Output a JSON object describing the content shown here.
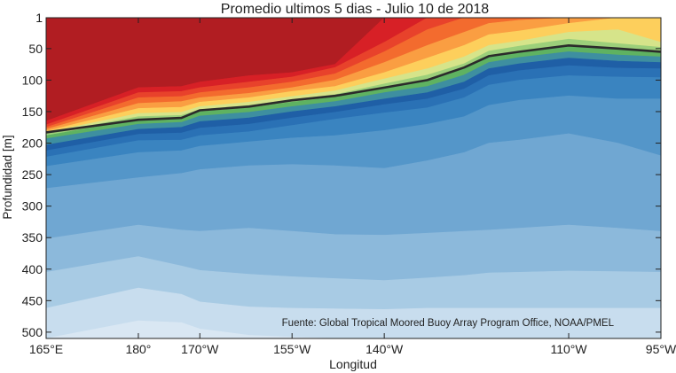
{
  "chart_data": {
    "type": "contour",
    "title": "Promedio ultimos 5 dias - Julio 10 de 2018",
    "xlabel": "Longitud",
    "ylabel": "Profundidad [m]",
    "source_note": "Fuente: Global Tropical Moored Buoy Array Program Office, NOAA/PMEL",
    "x_ticks": [
      {
        "value": 165,
        "label": "165°E"
      },
      {
        "value": 180,
        "label": "180°"
      },
      {
        "value": 190,
        "label": "170°W"
      },
      {
        "value": 205,
        "label": "155°W"
      },
      {
        "value": 220,
        "label": "140°W"
      },
      {
        "value": 250,
        "label": "110°W"
      },
      {
        "value": 265,
        "label": "95°W"
      }
    ],
    "y_ticks": [
      1,
      50,
      100,
      150,
      200,
      250,
      300,
      350,
      400,
      450,
      500
    ],
    "xlim": [
      165,
      265
    ],
    "ylim": [
      1,
      510
    ],
    "y_reversed": true,
    "thermocline": {
      "color": "#2b2b2b",
      "x": [
        165,
        180,
        187,
        190,
        198,
        205,
        212,
        220,
        227,
        233,
        237,
        242,
        250,
        258,
        265
      ],
      "depth": [
        183,
        163,
        160,
        148,
        142,
        132,
        125,
        112,
        100,
        80,
        62,
        55,
        45,
        50,
        55
      ]
    },
    "color_bands": [
      {
        "color": "#b11d22",
        "top": [
          0,
          0,
          0,
          0,
          0,
          0,
          0,
          0,
          0,
          0,
          0,
          0,
          0,
          0,
          0
        ],
        "bottom": [
          165,
          112,
          110,
          103,
          93,
          88,
          75,
          0,
          0,
          0,
          0,
          0,
          0,
          0,
          0
        ]
      },
      {
        "color": "#d72026",
        "top": [
          165,
          112,
          110,
          103,
          93,
          88,
          75,
          0,
          0,
          0,
          0,
          0,
          0,
          0,
          0
        ],
        "bottom": [
          171,
          120,
          118,
          112,
          103,
          95,
          80,
          40,
          0,
          0,
          0,
          0,
          0,
          0,
          0
        ]
      },
      {
        "color": "#e8422b",
        "top": [
          171,
          120,
          118,
          112,
          103,
          95,
          80,
          40,
          0,
          0,
          0,
          0,
          0,
          0,
          0
        ],
        "bottom": [
          175,
          128,
          126,
          120,
          112,
          103,
          90,
          55,
          20,
          0,
          0,
          0,
          0,
          0,
          0
        ]
      },
      {
        "color": "#f36b2e",
        "top": [
          175,
          128,
          126,
          120,
          112,
          103,
          90,
          55,
          20,
          0,
          0,
          0,
          0,
          0,
          0
        ],
        "bottom": [
          178,
          137,
          134,
          128,
          121,
          112,
          100,
          72,
          45,
          24,
          10,
          5,
          0,
          0,
          0
        ]
      },
      {
        "color": "#fa9e42",
        "top": [
          178,
          137,
          134,
          128,
          121,
          112,
          100,
          72,
          45,
          24,
          10,
          5,
          0,
          0,
          0
        ],
        "bottom": [
          181,
          145,
          143,
          135,
          128,
          118,
          110,
          88,
          65,
          45,
          28,
          22,
          10,
          0,
          0
        ]
      },
      {
        "color": "#fdcf5c",
        "top": [
          181,
          145,
          143,
          135,
          128,
          118,
          110,
          88,
          65,
          45,
          28,
          22,
          10,
          0,
          0
        ],
        "bottom": [
          183,
          153,
          151,
          142,
          135,
          126,
          117,
          98,
          82,
          63,
          45,
          38,
          24,
          20,
          40
        ]
      },
      {
        "color": "#d6e48a",
        "top": [
          183,
          153,
          151,
          142,
          135,
          126,
          117,
          98,
          82,
          63,
          45,
          38,
          24,
          20,
          40
        ],
        "bottom": [
          185,
          158,
          156,
          147,
          140,
          131,
          123,
          106,
          92,
          74,
          54,
          46,
          35,
          42,
          48
        ]
      },
      {
        "color": "#9ccf7a",
        "top": [
          185,
          158,
          156,
          147,
          140,
          131,
          123,
          106,
          92,
          74,
          54,
          46,
          35,
          42,
          48
        ],
        "bottom": [
          188,
          163,
          160,
          150,
          144,
          135,
          127,
          112,
          100,
          82,
          63,
          55,
          45,
          50,
          55
        ]
      },
      {
        "color": "#5fb261",
        "top": [
          188,
          163,
          160,
          150,
          144,
          135,
          127,
          112,
          100,
          82,
          63,
          55,
          45,
          50,
          55
        ],
        "bottom": [
          193,
          170,
          167,
          157,
          151,
          142,
          134,
          120,
          110,
          92,
          72,
          64,
          55,
          60,
          63
        ]
      },
      {
        "color": "#3e8fa0",
        "top": [
          193,
          170,
          167,
          157,
          151,
          142,
          134,
          120,
          110,
          92,
          72,
          64,
          55,
          60,
          63
        ],
        "bottom": [
          203,
          178,
          175,
          166,
          160,
          150,
          142,
          130,
          120,
          103,
          82,
          74,
          65,
          70,
          72
        ]
      },
      {
        "color": "#1f5fa6",
        "top": [
          203,
          178,
          175,
          166,
          160,
          150,
          142,
          130,
          120,
          103,
          82,
          74,
          65,
          70,
          72
        ],
        "bottom": [
          212,
          186,
          184,
          176,
          170,
          160,
          151,
          139,
          130,
          114,
          93,
          85,
          77,
          81,
          82
        ]
      },
      {
        "color": "#2a71b5",
        "top": [
          212,
          186,
          184,
          176,
          170,
          160,
          151,
          139,
          130,
          114,
          93,
          85,
          77,
          81,
          82
        ],
        "bottom": [
          222,
          196,
          195,
          188,
          182,
          172,
          162,
          152,
          144,
          128,
          108,
          100,
          93,
          95,
          96
        ]
      },
      {
        "color": "#3a84c0",
        "top": [
          222,
          196,
          195,
          188,
          182,
          172,
          162,
          152,
          144,
          128,
          108,
          100,
          93,
          95,
          96
        ],
        "bottom": [
          237,
          215,
          212,
          205,
          198,
          192,
          188,
          180,
          170,
          158,
          140,
          132,
          125,
          130,
          130
        ]
      },
      {
        "color": "#5496c9",
        "top": [
          237,
          215,
          212,
          205,
          198,
          192,
          188,
          180,
          170,
          158,
          140,
          132,
          125,
          130,
          130
        ],
        "bottom": [
          272,
          255,
          248,
          242,
          236,
          234,
          236,
          240,
          228,
          215,
          200,
          195,
          185,
          200,
          220
        ]
      },
      {
        "color": "#70a7d2",
        "top": [
          272,
          255,
          248,
          242,
          236,
          234,
          236,
          240,
          228,
          215,
          200,
          195,
          185,
          200,
          220
        ],
        "bottom": [
          352,
          330,
          338,
          340,
          335,
          340,
          345,
          346,
          343,
          340,
          338,
          335,
          330,
          335,
          340
        ]
      },
      {
        "color": "#8cb9db",
        "top": [
          352,
          330,
          338,
          340,
          335,
          340,
          345,
          346,
          343,
          340,
          338,
          335,
          330,
          335,
          340
        ],
        "bottom": [
          405,
          380,
          395,
          402,
          408,
          412,
          415,
          418,
          414,
          410,
          406,
          405,
          403,
          404,
          405
        ]
      },
      {
        "color": "#a8cbe4",
        "top": [
          405,
          380,
          395,
          402,
          408,
          412,
          415,
          418,
          414,
          410,
          406,
          405,
          403,
          404,
          405
        ],
        "bottom": [
          462,
          430,
          440,
          452,
          460,
          462,
          463,
          464,
          462,
          462,
          462,
          462,
          462,
          462,
          462
        ]
      },
      {
        "color": "#c8ddee",
        "top": [
          462,
          430,
          440,
          452,
          460,
          462,
          463,
          464,
          462,
          462,
          462,
          462,
          462,
          462,
          462
        ],
        "bottom": [
          510,
          482,
          485,
          495,
          505,
          508,
          510,
          510,
          510,
          510,
          510,
          510,
          510,
          510,
          510
        ]
      },
      {
        "color": "#d9e7f3",
        "top": [
          510,
          482,
          485,
          495,
          505,
          508,
          510,
          510,
          510,
          510,
          510,
          510,
          510,
          510,
          510
        ],
        "bottom": [
          510,
          510,
          510,
          510,
          510,
          510,
          510,
          510,
          510,
          510,
          510,
          510,
          510,
          510,
          510
        ]
      }
    ]
  }
}
